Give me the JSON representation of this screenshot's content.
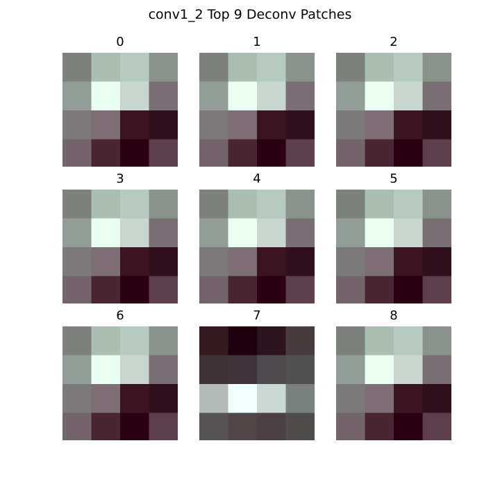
{
  "chart_data": {
    "type": "heatmap",
    "title": "conv1_2 Top 9 Deconv Patches",
    "grid": false,
    "axes_visible": false,
    "panels": [
      {
        "label": "0",
        "pixels": [
          [
            "#7c817c",
            "#a9bfb2",
            "#b5cbbf",
            "#8a928c"
          ],
          [
            "#919d96",
            "#e8fff2",
            "#c9d6cf",
            "#7a6e75"
          ],
          [
            "#7c797b",
            "#7d6d74",
            "#3a1421",
            "#30101c"
          ],
          [
            "#74656d",
            "#4a2632",
            "#2a0012",
            "#5d3f4c"
          ]
        ]
      },
      {
        "label": "1",
        "pixels": [
          [
            "#7c817c",
            "#a9bfb2",
            "#b5cbbf",
            "#8a928c"
          ],
          [
            "#919d96",
            "#e8fff2",
            "#c9d6cf",
            "#7a6e75"
          ],
          [
            "#7c797b",
            "#7d6d74",
            "#3a1421",
            "#30101c"
          ],
          [
            "#74656d",
            "#4a2632",
            "#2a0012",
            "#5d3f4c"
          ]
        ]
      },
      {
        "label": "2",
        "pixels": [
          [
            "#7c817c",
            "#a9bfb2",
            "#b5cbbf",
            "#8a928c"
          ],
          [
            "#919d96",
            "#e8fff2",
            "#c9d6cf",
            "#7a6e75"
          ],
          [
            "#7c797b",
            "#7d6d74",
            "#3a1421",
            "#30101c"
          ],
          [
            "#74656d",
            "#4a2632",
            "#2a0012",
            "#5d3f4c"
          ]
        ]
      },
      {
        "label": "3",
        "pixels": [
          [
            "#7c817c",
            "#a9bfb2",
            "#b5cbbf",
            "#8a928c"
          ],
          [
            "#919d96",
            "#e8fff2",
            "#c9d6cf",
            "#7a6e75"
          ],
          [
            "#7c797b",
            "#7d6d74",
            "#3a1421",
            "#30101c"
          ],
          [
            "#74656d",
            "#4a2632",
            "#2a0012",
            "#5d3f4c"
          ]
        ]
      },
      {
        "label": "4",
        "pixels": [
          [
            "#7c817c",
            "#a9bfb2",
            "#b5cbbf",
            "#8a928c"
          ],
          [
            "#919d96",
            "#e8fff2",
            "#c9d6cf",
            "#7a6e75"
          ],
          [
            "#7c797b",
            "#7d6d74",
            "#3a1421",
            "#30101c"
          ],
          [
            "#74656d",
            "#4a2632",
            "#2a0012",
            "#5d3f4c"
          ]
        ]
      },
      {
        "label": "5",
        "pixels": [
          [
            "#7c817c",
            "#a9bfb2",
            "#b5cbbf",
            "#8a928c"
          ],
          [
            "#919d96",
            "#e8fff2",
            "#c9d6cf",
            "#7a6e75"
          ],
          [
            "#7c797b",
            "#7d6d74",
            "#3a1421",
            "#30101c"
          ],
          [
            "#74656d",
            "#4a2632",
            "#2a0012",
            "#5d3f4c"
          ]
        ]
      },
      {
        "label": "6",
        "pixels": [
          [
            "#7c817c",
            "#a9bfb2",
            "#b5cbbf",
            "#8a928c"
          ],
          [
            "#919d96",
            "#e8fff2",
            "#c9d6cf",
            "#7a6e75"
          ],
          [
            "#7c797b",
            "#7d6d74",
            "#3a1421",
            "#30101c"
          ],
          [
            "#74656d",
            "#4a2632",
            "#2a0012",
            "#5d3f4c"
          ]
        ]
      },
      {
        "label": "7",
        "pixels": [
          [
            "#34191f",
            "#21000d",
            "#2d151f",
            "#473c3e"
          ],
          [
            "#3e3236",
            "#3f3439",
            "#4e4a4d",
            "#525152"
          ],
          [
            "#b2bbb8",
            "#eefffd",
            "#c9d9d4",
            "#7a807e"
          ],
          [
            "#565354",
            "#504648",
            "#4b4043",
            "#504c4c"
          ]
        ]
      },
      {
        "label": "8",
        "pixels": [
          [
            "#7c817c",
            "#a9bfb2",
            "#b5cbbf",
            "#8a928c"
          ],
          [
            "#919d96",
            "#e8fff2",
            "#c9d6cf",
            "#7a6e75"
          ],
          [
            "#7c797b",
            "#7d6d74",
            "#3a1421",
            "#30101c"
          ],
          [
            "#74656d",
            "#4a2632",
            "#2a0012",
            "#5d3f4c"
          ]
        ]
      }
    ]
  }
}
